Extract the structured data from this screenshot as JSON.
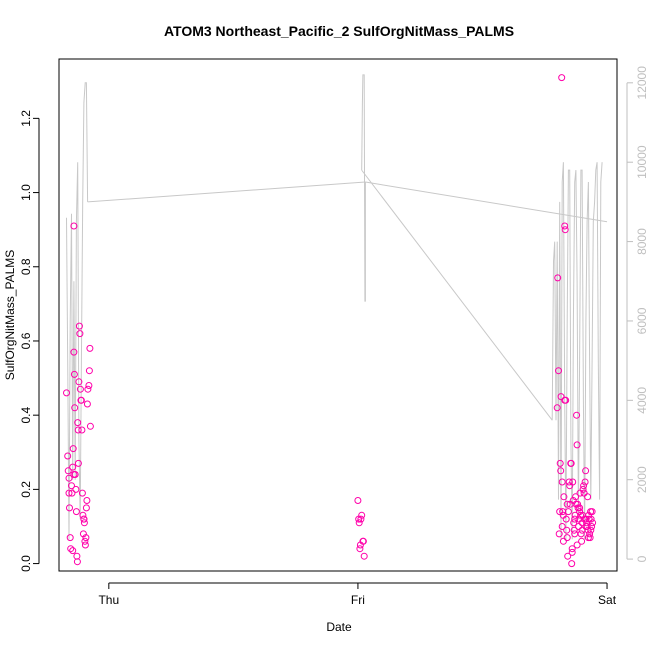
{
  "chart_data": {
    "type": "scatter",
    "title": "ATOM3 Northeast_Pacific_2 SulfOrgNitMass_PALMS",
    "xlabel": "Date",
    "ylabel": "SulfOrgNitMass_PALMS",
    "x_ticks": [
      {
        "label": "Thu",
        "value": 0
      },
      {
        "label": "Fri",
        "value": 1
      },
      {
        "label": "Sat",
        "value": 2
      }
    ],
    "xlim": [
      -0.2,
      2.04
    ],
    "ylim": [
      -0.02,
      1.36
    ],
    "y_ticks": [
      0.0,
      0.2,
      0.4,
      0.6,
      0.8,
      1.0,
      1.2
    ],
    "y2lim": [
      -300,
      12600
    ],
    "y2_ticks": [
      0,
      2000,
      4000,
      6000,
      8000,
      10000,
      12000
    ],
    "colors": {
      "points": "#ff00aa",
      "altitude_line": "#c8c8c8",
      "axis": "#000000",
      "right_axis": "#bfbfbf"
    },
    "points": [
      [
        -0.17,
        0.46
      ],
      [
        -0.165,
        0.29
      ],
      [
        -0.163,
        0.25
      ],
      [
        -0.16,
        0.23
      ],
      [
        -0.158,
        0.15
      ],
      [
        -0.155,
        0.07
      ],
      [
        -0.153,
        0.04
      ],
      [
        -0.15,
        0.21
      ],
      [
        -0.148,
        0.19
      ],
      [
        -0.145,
        0.26
      ],
      [
        -0.143,
        0.31
      ],
      [
        -0.14,
        0.57
      ],
      [
        -0.14,
        0.91
      ],
      [
        -0.138,
        0.51
      ],
      [
        -0.137,
        0.42
      ],
      [
        -0.135,
        0.24
      ],
      [
        -0.132,
        0.2
      ],
      [
        -0.13,
        0.14
      ],
      [
        -0.128,
        0.02
      ],
      [
        -0.126,
        0.005
      ],
      [
        -0.125,
        0.38
      ],
      [
        -0.123,
        0.36
      ],
      [
        -0.122,
        0.27
      ],
      [
        -0.12,
        0.49
      ],
      [
        -0.118,
        0.64
      ],
      [
        -0.116,
        0.62
      ],
      [
        -0.114,
        0.47
      ],
      [
        -0.112,
        0.44
      ],
      [
        -0.11,
        0.44
      ],
      [
        -0.108,
        0.36
      ],
      [
        -0.106,
        0.19
      ],
      [
        -0.104,
        0.13
      ],
      [
        -0.102,
        0.08
      ],
      [
        -0.1,
        0.12
      ],
      [
        -0.098,
        0.11
      ],
      [
        -0.096,
        0.06
      ],
      [
        -0.094,
        0.05
      ],
      [
        -0.092,
        0.07
      ],
      [
        -0.09,
        0.15
      ],
      [
        -0.088,
        0.17
      ],
      [
        -0.086,
        0.43
      ],
      [
        -0.084,
        0.47
      ],
      [
        -0.08,
        0.48
      ],
      [
        -0.078,
        0.52
      ],
      [
        -0.076,
        0.58
      ],
      [
        -0.074,
        0.37
      ],
      [
        -0.16,
        0.19
      ],
      [
        -0.145,
        0.035
      ],
      [
        -0.1,
        0.12
      ],
      [
        -0.14,
        0.24
      ],
      [
        1.0,
        0.17
      ],
      [
        1.003,
        0.12
      ],
      [
        1.005,
        0.11
      ],
      [
        1.008,
        0.04
      ],
      [
        1.01,
        0.05
      ],
      [
        1.012,
        0.12
      ],
      [
        1.015,
        0.13
      ],
      [
        1.02,
        0.06
      ],
      [
        1.022,
        0.06
      ],
      [
        1.025,
        0.02
      ],
      [
        1.8,
        0.42
      ],
      [
        1.802,
        0.77
      ],
      [
        1.805,
        0.52
      ],
      [
        1.808,
        0.08
      ],
      [
        1.81,
        0.14
      ],
      [
        1.812,
        0.27
      ],
      [
        1.814,
        0.25
      ],
      [
        1.815,
        0.45
      ],
      [
        1.818,
        1.31
      ],
      [
        1.82,
        0.22
      ],
      [
        1.822,
        0.14
      ],
      [
        1.824,
        0.13
      ],
      [
        1.825,
        0.06
      ],
      [
        1.827,
        0.18
      ],
      [
        1.83,
        0.44
      ],
      [
        1.83,
        0.91
      ],
      [
        1.832,
        0.9
      ],
      [
        1.834,
        0.44
      ],
      [
        1.836,
        0.12
      ],
      [
        1.838,
        0.09
      ],
      [
        1.84,
        0.07
      ],
      [
        1.842,
        0.02
      ],
      [
        1.845,
        0.14
      ],
      [
        1.848,
        0.22
      ],
      [
        1.85,
        0.21
      ],
      [
        1.852,
        0.16
      ],
      [
        1.854,
        0.27
      ],
      [
        1.856,
        0.27
      ],
      [
        1.858,
        0.0
      ],
      [
        1.86,
        0.04
      ],
      [
        1.862,
        0.22
      ],
      [
        1.864,
        0.17
      ],
      [
        1.866,
        0.11
      ],
      [
        1.868,
        0.09
      ],
      [
        1.87,
        0.08
      ],
      [
        1.872,
        0.13
      ],
      [
        1.874,
        0.18
      ],
      [
        1.876,
        0.16
      ],
      [
        1.878,
        0.4
      ],
      [
        1.88,
        0.32
      ],
      [
        1.882,
        0.16
      ],
      [
        1.884,
        0.15
      ],
      [
        1.886,
        0.1
      ],
      [
        1.888,
        0.12
      ],
      [
        1.89,
        0.14
      ],
      [
        1.892,
        0.19
      ],
      [
        1.894,
        0.13
      ],
      [
        1.896,
        0.08
      ],
      [
        1.898,
        0.06
      ],
      [
        1.9,
        0.11
      ],
      [
        1.902,
        0.13
      ],
      [
        1.904,
        0.2
      ],
      [
        1.906,
        0.21
      ],
      [
        1.908,
        0.19
      ],
      [
        1.91,
        0.12
      ],
      [
        1.912,
        0.22
      ],
      [
        1.914,
        0.25
      ],
      [
        1.916,
        0.12
      ],
      [
        1.918,
        0.11
      ],
      [
        1.92,
        0.1
      ],
      [
        1.922,
        0.18
      ],
      [
        1.924,
        0.09
      ],
      [
        1.926,
        0.13
      ],
      [
        1.928,
        0.12
      ],
      [
        1.93,
        0.08
      ],
      [
        1.932,
        0.07
      ],
      [
        1.934,
        0.14
      ],
      [
        1.936,
        0.12
      ],
      [
        1.938,
        0.1
      ],
      [
        1.94,
        0.14
      ],
      [
        1.942,
        0.11
      ],
      [
        1.86,
        0.03
      ],
      [
        1.88,
        0.05
      ],
      [
        1.9,
        0.09
      ],
      [
        1.915,
        0.1
      ],
      [
        1.925,
        0.07
      ],
      [
        1.935,
        0.09
      ],
      [
        1.84,
        0.16
      ],
      [
        1.82,
        0.1
      ],
      [
        1.87,
        0.12
      ],
      [
        1.89,
        0.15
      ]
    ],
    "altitude_line": [
      [
        -0.17,
        8600
      ],
      [
        -0.165,
        5000
      ],
      [
        -0.16,
        500
      ],
      [
        -0.155,
        6000
      ],
      [
        -0.15,
        8700
      ],
      [
        -0.145,
        2000
      ],
      [
        -0.14,
        7000
      ],
      [
        -0.135,
        2000
      ],
      [
        -0.13,
        8500
      ],
      [
        -0.125,
        10000
      ],
      [
        -0.12,
        3000
      ],
      [
        -0.115,
        1000
      ],
      [
        -0.11,
        5000
      ],
      [
        -0.105,
        9000
      ],
      [
        -0.1,
        11500
      ],
      [
        -0.095,
        12000
      ],
      [
        -0.09,
        12000
      ],
      [
        -0.085,
        9000
      ],
      [
        1.015,
        9800
      ],
      [
        1.018,
        11500
      ],
      [
        1.02,
        12200
      ],
      [
        1.025,
        12200
      ],
      [
        1.028,
        6500
      ],
      [
        1.03,
        6500
      ],
      [
        1.03,
        9500
      ],
      [
        1.78,
        3500
      ],
      [
        1.785,
        7500
      ],
      [
        1.79,
        8000
      ],
      [
        1.795,
        3500
      ],
      [
        1.8,
        8000
      ],
      [
        1.805,
        1500
      ],
      [
        1.81,
        9000
      ],
      [
        1.815,
        500
      ],
      [
        1.82,
        9500
      ],
      [
        1.825,
        10000
      ],
      [
        1.83,
        4000
      ],
      [
        1.835,
        500
      ],
      [
        1.84,
        6000
      ],
      [
        1.845,
        9800
      ],
      [
        1.85,
        9800
      ],
      [
        1.855,
        3000
      ],
      [
        1.86,
        500
      ],
      [
        1.865,
        6000
      ],
      [
        1.87,
        9500
      ],
      [
        1.875,
        9800
      ],
      [
        1.88,
        7000
      ],
      [
        1.885,
        1000
      ],
      [
        1.89,
        5000
      ],
      [
        1.895,
        9800
      ],
      [
        1.9,
        9800
      ],
      [
        1.905,
        4000
      ],
      [
        1.91,
        500
      ],
      [
        1.915,
        6000
      ],
      [
        1.92,
        8500
      ],
      [
        1.925,
        9500
      ],
      [
        1.93,
        5000
      ],
      [
        1.935,
        1500
      ],
      [
        1.94,
        5000
      ],
      [
        1.945,
        8500
      ],
      [
        1.95,
        9000
      ],
      [
        1.955,
        9800
      ],
      [
        1.96,
        10000
      ],
      [
        1.965,
        5000
      ],
      [
        1.97,
        1500
      ],
      [
        1.975,
        9500
      ],
      [
        1.98,
        10000
      ],
      [
        1.985,
        8000
      ],
      [
        2.0,
        8500
      ]
    ],
    "altitude_line_segments": [
      [
        0,
        17
      ],
      [
        18,
        24
      ],
      [
        25,
        65
      ]
    ],
    "altitude_connectors": [
      [
        [
          -0.085,
          9000
        ],
        [
          1.03,
          9500
        ]
      ],
      [
        [
          1.03,
          9500
        ],
        [
          2.0,
          8500
        ]
      ],
      [
        [
          1.78,
          3500
        ],
        [
          1.015,
          9800
        ]
      ]
    ]
  }
}
